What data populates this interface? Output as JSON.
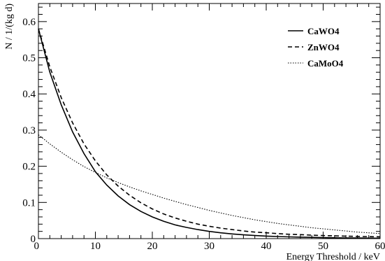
{
  "chart_data": {
    "type": "line",
    "xlabel": "Energy Threshold / keV",
    "ylabel": "N / 1/(kg d)",
    "xlim": [
      0,
      60
    ],
    "ylim": [
      0,
      0.65
    ],
    "xticks": [
      0,
      10,
      20,
      30,
      40,
      50,
      60
    ],
    "xtick_labels": [
      "0",
      "10",
      "20",
      "30",
      "40",
      "50",
      "60"
    ],
    "yticks": [
      0,
      0.1,
      0.2,
      0.3,
      0.4,
      0.5,
      0.6
    ],
    "ytick_labels": [
      "0",
      "0.1",
      "0.2",
      "0.3",
      "0.4",
      "0.5",
      "0.6"
    ],
    "grid": false,
    "legend_position": "top-right",
    "series": [
      {
        "name": "CaWO4",
        "style": "solid",
        "x": [
          0,
          2,
          4,
          6,
          8,
          10,
          12,
          14,
          16,
          18,
          20,
          22,
          24,
          26,
          28,
          30,
          32,
          34,
          36,
          38,
          40,
          42,
          44,
          46,
          48,
          50,
          52,
          54,
          56,
          58,
          60
        ],
        "y": [
          0.58,
          0.46,
          0.37,
          0.295,
          0.235,
          0.185,
          0.148,
          0.118,
          0.094,
          0.075,
          0.06,
          0.048,
          0.038,
          0.031,
          0.025,
          0.02,
          0.016,
          0.013,
          0.0105,
          0.0085,
          0.007,
          0.0058,
          0.0048,
          0.004,
          0.0034,
          0.0028,
          0.0024,
          0.002,
          0.0017,
          0.0014,
          0.0012
        ]
      },
      {
        "name": "ZnWO4",
        "style": "dashed",
        "x": [
          0,
          2,
          4,
          6,
          8,
          10,
          12,
          14,
          16,
          18,
          20,
          22,
          24,
          26,
          28,
          30,
          32,
          34,
          36,
          38,
          40,
          42,
          44,
          46,
          48,
          50,
          52,
          54,
          56,
          58,
          60
        ],
        "y": [
          0.58,
          0.475,
          0.39,
          0.32,
          0.262,
          0.215,
          0.176,
          0.145,
          0.12,
          0.099,
          0.082,
          0.068,
          0.057,
          0.048,
          0.04,
          0.034,
          0.029,
          0.025,
          0.021,
          0.018,
          0.016,
          0.014,
          0.012,
          0.011,
          0.0095,
          0.0085,
          0.0076,
          0.0068,
          0.0061,
          0.0055,
          0.005
        ]
      },
      {
        "name": "CaMoO4",
        "style": "dotted",
        "x": [
          0,
          2,
          4,
          6,
          8,
          10,
          12,
          14,
          16,
          18,
          20,
          22,
          24,
          26,
          28,
          30,
          32,
          34,
          36,
          38,
          40,
          42,
          44,
          46,
          48,
          50,
          52,
          54,
          56,
          58,
          60
        ],
        "y": [
          0.287,
          0.262,
          0.239,
          0.218,
          0.199,
          0.183,
          0.168,
          0.155,
          0.143,
          0.132,
          0.122,
          0.112,
          0.103,
          0.094,
          0.086,
          0.078,
          0.071,
          0.064,
          0.058,
          0.052,
          0.047,
          0.042,
          0.038,
          0.034,
          0.03,
          0.027,
          0.024,
          0.021,
          0.018,
          0.016,
          0.014
        ]
      }
    ]
  }
}
